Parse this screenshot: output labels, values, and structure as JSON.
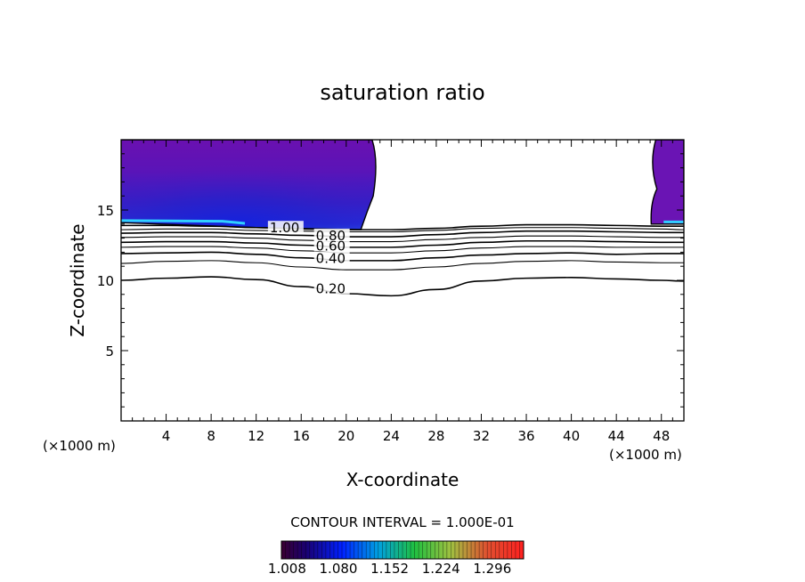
{
  "chart_data": {
    "type": "contour",
    "title": "saturation ratio",
    "xlabel": "X-coordinate",
    "ylabel": "Z-coordinate",
    "x_unit": "(×1000 m)",
    "x_unit_right": "(×1000 m)",
    "xlim": [
      0,
      50
    ],
    "ylim": [
      0,
      20
    ],
    "x_ticks": [
      4,
      8,
      12,
      16,
      20,
      24,
      28,
      32,
      36,
      40,
      44,
      48
    ],
    "y_ticks": [
      5,
      10,
      15
    ],
    "contour_interval_label": "CONTOUR INTERVAL = 1.000E-01",
    "contour_levels": [
      {
        "level": 0.2,
        "label": "0.20",
        "x": [
          0,
          4,
          8,
          12,
          16,
          20,
          24,
          28,
          32,
          36,
          40,
          44,
          48,
          50
        ],
        "z": [
          10.0,
          10.15,
          10.25,
          10.05,
          9.55,
          9.05,
          8.9,
          9.35,
          9.95,
          10.15,
          10.2,
          10.1,
          10.0,
          9.95
        ]
      },
      {
        "level": 0.3,
        "label": "",
        "x": [
          0,
          4,
          8,
          12,
          16,
          20,
          24,
          28,
          32,
          36,
          40,
          44,
          48,
          50
        ],
        "z": [
          11.2,
          11.35,
          11.4,
          11.25,
          10.95,
          10.75,
          10.75,
          10.95,
          11.2,
          11.35,
          11.4,
          11.3,
          11.25,
          11.25
        ]
      },
      {
        "level": 0.4,
        "label": "0.40",
        "x": [
          0,
          4,
          8,
          12,
          16,
          20,
          24,
          28,
          32,
          36,
          40,
          44,
          48,
          50
        ],
        "z": [
          11.9,
          11.95,
          12.0,
          11.85,
          11.6,
          11.4,
          11.4,
          11.6,
          11.8,
          11.9,
          11.95,
          11.85,
          11.9,
          11.9
        ]
      },
      {
        "level": 0.5,
        "label": "",
        "x": [
          0,
          4,
          8,
          12,
          16,
          20,
          24,
          28,
          32,
          36,
          40,
          44,
          48,
          50
        ],
        "z": [
          12.35,
          12.4,
          12.4,
          12.3,
          12.1,
          11.95,
          11.95,
          12.1,
          12.3,
          12.4,
          12.4,
          12.35,
          12.35,
          12.35
        ]
      },
      {
        "level": 0.6,
        "label": "0.60",
        "x": [
          0,
          4,
          8,
          12,
          16,
          20,
          24,
          28,
          32,
          36,
          40,
          44,
          48,
          50
        ],
        "z": [
          12.7,
          12.75,
          12.75,
          12.65,
          12.5,
          12.35,
          12.35,
          12.5,
          12.7,
          12.8,
          12.8,
          12.75,
          12.7,
          12.7
        ]
      },
      {
        "level": 0.7,
        "label": "",
        "x": [
          0,
          4,
          8,
          12,
          16,
          20,
          24,
          28,
          32,
          36,
          40,
          44,
          48,
          50
        ],
        "z": [
          13.05,
          13.1,
          13.1,
          13.0,
          12.85,
          12.75,
          12.75,
          12.9,
          13.05,
          13.15,
          13.15,
          13.1,
          13.05,
          13.05
        ]
      },
      {
        "level": 0.8,
        "label": "0.80",
        "x": [
          0,
          4,
          8,
          12,
          16,
          20,
          24,
          28,
          32,
          36,
          40,
          44,
          48,
          50
        ],
        "z": [
          13.35,
          13.4,
          13.4,
          13.3,
          13.2,
          13.1,
          13.1,
          13.25,
          13.4,
          13.5,
          13.5,
          13.45,
          13.4,
          13.4
        ]
      },
      {
        "level": 0.9,
        "label": "",
        "x": [
          0,
          4,
          8,
          12,
          16,
          20,
          24,
          28,
          32,
          36,
          40,
          44,
          48,
          50
        ],
        "z": [
          13.6,
          13.65,
          13.65,
          13.55,
          13.5,
          13.45,
          13.45,
          13.55,
          13.7,
          13.75,
          13.75,
          13.7,
          13.65,
          13.6
        ]
      },
      {
        "level": 1.0,
        "label": "1.00",
        "x": [
          0,
          4,
          8,
          12,
          16,
          20,
          24,
          28,
          32,
          36,
          40,
          44,
          48,
          50
        ],
        "z": [
          13.9,
          13.9,
          13.85,
          13.75,
          13.65,
          13.6,
          13.6,
          13.7,
          13.85,
          13.95,
          13.95,
          13.9,
          13.85,
          13.85
        ]
      }
    ],
    "supersaturated_regions": [
      {
        "name": "left",
        "x_range": [
          0,
          22.7
        ],
        "z_range": [
          13.6,
          20
        ]
      },
      {
        "name": "right",
        "x_range": [
          47.2,
          50
        ],
        "z_range": [
          14.0,
          20
        ]
      }
    ],
    "colorbar": {
      "colormap": "rainbow",
      "min": 1.0,
      "max": 1.34,
      "tick_labels": [
        "1.008",
        "1.080",
        "1.152",
        "1.224",
        "1.296"
      ]
    },
    "grid": false,
    "legend": "none"
  }
}
